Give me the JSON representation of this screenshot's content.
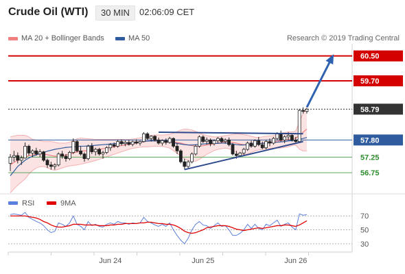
{
  "header": {
    "instrument": "Crude Oil (WTI)",
    "timeframe": "30 MIN",
    "time": "02:06:09 CET"
  },
  "legend": {
    "items": [
      {
        "label": "MA 20 + Bollinger Bands",
        "color": "#f08080"
      },
      {
        "label": "MA 50",
        "color": "#2e5c9e"
      }
    ],
    "credit": "Research © 2019 Trading Central"
  },
  "chart_data": {
    "type": "candlestick",
    "price_range": [
      56.4,
      60.8
    ],
    "levels": [
      {
        "value": 60.5,
        "label": "60.50",
        "kind": "resistance",
        "color": "#d40000",
        "style": "solid"
      },
      {
        "value": 59.7,
        "label": "59.70",
        "kind": "resistance",
        "color": "#d40000",
        "style": "solid"
      },
      {
        "value": 58.79,
        "label": "58.79",
        "kind": "last-price",
        "color": "#333333",
        "style": "dotted"
      },
      {
        "value": 57.8,
        "label": "57.80",
        "kind": "pivot",
        "color": "#2e5c9e",
        "style": "solid"
      },
      {
        "value": 57.25,
        "label": "57.25",
        "kind": "support",
        "color": "#5aa65a",
        "style": "solid"
      },
      {
        "value": 56.75,
        "label": "56.75",
        "kind": "support",
        "color": "#5aa65a",
        "style": "solid"
      }
    ],
    "x_ticks": [
      {
        "label": "Jun 24",
        "index": 27
      },
      {
        "label": "Jun 25",
        "index": 52
      },
      {
        "label": "Jun 26",
        "index": 77
      }
    ],
    "candles": [
      [
        57.05,
        57.35,
        56.8,
        57.25
      ],
      [
        57.25,
        57.45,
        57.1,
        57.3
      ],
      [
        57.3,
        57.4,
        57.05,
        57.15
      ],
      [
        57.15,
        57.3,
        57.0,
        57.22
      ],
      [
        57.22,
        57.72,
        57.2,
        57.6
      ],
      [
        57.6,
        57.65,
        57.3,
        57.38
      ],
      [
        57.38,
        57.5,
        57.25,
        57.45
      ],
      [
        57.45,
        57.55,
        57.3,
        57.35
      ],
      [
        57.35,
        57.5,
        57.25,
        57.42
      ],
      [
        57.42,
        57.45,
        57.1,
        57.15
      ],
      [
        57.15,
        57.2,
        56.9,
        57.0
      ],
      [
        57.0,
        57.1,
        56.85,
        56.95
      ],
      [
        56.95,
        57.05,
        56.85,
        57.0
      ],
      [
        57.0,
        57.4,
        56.95,
        57.35
      ],
      [
        57.35,
        57.45,
        57.2,
        57.28
      ],
      [
        57.28,
        57.35,
        57.1,
        57.2
      ],
      [
        57.2,
        57.45,
        57.15,
        57.4
      ],
      [
        57.4,
        57.85,
        57.35,
        57.75
      ],
      [
        57.75,
        57.8,
        57.4,
        57.45
      ],
      [
        57.45,
        57.6,
        57.3,
        57.35
      ],
      [
        57.35,
        57.4,
        57.1,
        57.2
      ],
      [
        57.2,
        57.65,
        57.15,
        57.6
      ],
      [
        57.6,
        57.7,
        57.35,
        57.42
      ],
      [
        57.42,
        57.55,
        57.3,
        57.5
      ],
      [
        57.5,
        57.55,
        57.3,
        57.35
      ],
      [
        57.35,
        57.45,
        57.2,
        57.4
      ],
      [
        57.4,
        57.6,
        57.35,
        57.55
      ],
      [
        57.55,
        57.7,
        57.45,
        57.65
      ],
      [
        57.65,
        57.72,
        57.55,
        57.6
      ],
      [
        57.6,
        57.8,
        57.55,
        57.75
      ],
      [
        57.75,
        57.82,
        57.62,
        57.68
      ],
      [
        57.68,
        57.78,
        57.6,
        57.72
      ],
      [
        57.72,
        57.8,
        57.62,
        57.66
      ],
      [
        57.66,
        57.78,
        57.6,
        57.74
      ],
      [
        57.74,
        57.82,
        57.66,
        57.7
      ],
      [
        57.7,
        57.78,
        57.62,
        57.75
      ],
      [
        57.75,
        58.05,
        57.72,
        58.0
      ],
      [
        58.0,
        58.05,
        57.8,
        57.85
      ],
      [
        57.85,
        57.95,
        57.75,
        57.92
      ],
      [
        57.92,
        57.95,
        57.75,
        57.8
      ],
      [
        57.8,
        57.88,
        57.65,
        57.7
      ],
      [
        57.7,
        57.82,
        57.62,
        57.78
      ],
      [
        57.78,
        57.85,
        57.65,
        57.72
      ],
      [
        57.72,
        57.9,
        57.68,
        57.85
      ],
      [
        57.85,
        57.88,
        57.55,
        57.6
      ],
      [
        57.6,
        57.7,
        57.35,
        57.45
      ],
      [
        57.45,
        57.5,
        57.05,
        57.1
      ],
      [
        57.1,
        57.2,
        56.85,
        56.95
      ],
      [
        56.95,
        57.15,
        56.9,
        57.1
      ],
      [
        57.1,
        57.4,
        57.05,
        57.35
      ],
      [
        57.35,
        57.65,
        57.3,
        57.6
      ],
      [
        57.6,
        57.95,
        57.55,
        57.9
      ],
      [
        57.9,
        57.95,
        57.7,
        57.75
      ],
      [
        57.75,
        57.88,
        57.65,
        57.8
      ],
      [
        57.8,
        57.85,
        57.6,
        57.68
      ],
      [
        57.68,
        57.82,
        57.62,
        57.78
      ],
      [
        57.78,
        57.9,
        57.7,
        57.85
      ],
      [
        57.85,
        57.9,
        57.7,
        57.75
      ],
      [
        57.75,
        57.85,
        57.68,
        57.8
      ],
      [
        57.8,
        57.88,
        57.6,
        57.65
      ],
      [
        57.65,
        57.7,
        57.3,
        57.35
      ],
      [
        57.35,
        57.45,
        57.2,
        57.3
      ],
      [
        57.3,
        57.42,
        57.25,
        57.38
      ],
      [
        57.38,
        57.55,
        57.32,
        57.5
      ],
      [
        57.5,
        57.75,
        57.45,
        57.7
      ],
      [
        57.7,
        57.78,
        57.55,
        57.6
      ],
      [
        57.6,
        57.82,
        57.55,
        57.78
      ],
      [
        57.78,
        57.9,
        57.6,
        57.65
      ],
      [
        57.65,
        57.75,
        57.5,
        57.55
      ],
      [
        57.55,
        57.8,
        57.5,
        57.75
      ],
      [
        57.75,
        57.85,
        57.6,
        57.7
      ],
      [
        57.7,
        57.9,
        57.65,
        57.85
      ],
      [
        57.85,
        58.05,
        57.8,
        58.0
      ],
      [
        58.0,
        58.1,
        57.75,
        57.8
      ],
      [
        57.8,
        57.95,
        57.7,
        57.9
      ],
      [
        57.9,
        58.05,
        57.8,
        57.95
      ],
      [
        57.95,
        58.02,
        57.75,
        57.8
      ],
      [
        57.8,
        57.9,
        57.7,
        57.75
      ],
      [
        57.75,
        58.8,
        57.72,
        58.75
      ],
      [
        58.75,
        58.85,
        58.65,
        58.72
      ],
      [
        58.72,
        58.82,
        58.65,
        58.79
      ]
    ],
    "ma50": [
      56.65,
      56.8,
      56.95,
      57.05,
      57.15,
      57.22,
      57.28,
      57.32,
      57.36,
      57.4,
      57.44,
      57.47,
      57.5,
      57.52,
      57.54,
      57.56,
      57.57,
      57.58,
      57.59,
      57.6,
      57.6,
      57.61,
      57.62,
      57.63,
      57.64,
      57.65,
      57.66,
      57.67,
      57.68,
      57.69,
      57.7,
      57.71,
      57.71,
      57.72,
      57.73,
      57.74,
      57.75,
      57.76,
      57.77,
      57.77,
      57.77,
      57.76,
      57.75,
      57.73,
      57.71,
      57.69,
      57.67,
      57.65,
      57.64,
      57.64,
      57.65,
      57.66,
      57.67,
      57.68,
      57.69,
      57.69,
      57.69,
      57.7,
      57.7,
      57.69,
      57.67,
      57.65,
      57.64,
      57.64,
      57.65,
      57.66,
      57.67,
      57.68,
      57.69,
      57.7,
      57.71,
      57.72,
      57.73,
      57.74,
      57.75,
      57.77,
      57.78,
      57.79,
      57.82,
      57.85,
      57.88
    ],
    "ma20": [
      57.0,
      57.08,
      57.15,
      57.2,
      57.25,
      57.3,
      57.32,
      57.35,
      57.36,
      57.35,
      57.33,
      57.3,
      57.28,
      57.28,
      57.3,
      57.32,
      57.35,
      57.38,
      57.42,
      57.44,
      57.45,
      57.46,
      57.47,
      57.48,
      57.5,
      57.52,
      57.54,
      57.56,
      57.58,
      57.6,
      57.62,
      57.64,
      57.66,
      57.68,
      57.7,
      57.72,
      57.74,
      57.76,
      57.77,
      57.78,
      57.78,
      57.78,
      57.77,
      57.76,
      57.74,
      57.72,
      57.7,
      57.67,
      57.64,
      57.62,
      57.6,
      57.6,
      57.62,
      57.64,
      57.66,
      57.68,
      57.7,
      57.72,
      57.74,
      57.74,
      57.72,
      57.7,
      57.67,
      57.65,
      57.65,
      57.66,
      57.67,
      57.68,
      57.7,
      57.72,
      57.73,
      57.74,
      57.76,
      57.78,
      57.8,
      57.82,
      57.84,
      57.86,
      57.95,
      58.05,
      58.15
    ],
    "bb_width": [
      0.9,
      0.85,
      0.8,
      0.75,
      0.7,
      0.6,
      0.5,
      0.45,
      0.42,
      0.4,
      0.42,
      0.45,
      0.45,
      0.42,
      0.4,
      0.38,
      0.38,
      0.4,
      0.42,
      0.42,
      0.4,
      0.38,
      0.36,
      0.34,
      0.32,
      0.3,
      0.28,
      0.26,
      0.24,
      0.22,
      0.2,
      0.18,
      0.16,
      0.15,
      0.15,
      0.15,
      0.16,
      0.18,
      0.18,
      0.18,
      0.18,
      0.18,
      0.2,
      0.22,
      0.28,
      0.35,
      0.42,
      0.48,
      0.5,
      0.5,
      0.48,
      0.42,
      0.36,
      0.3,
      0.26,
      0.22,
      0.2,
      0.2,
      0.2,
      0.22,
      0.26,
      0.3,
      0.32,
      0.32,
      0.3,
      0.26,
      0.22,
      0.2,
      0.2,
      0.2,
      0.2,
      0.2,
      0.22,
      0.24,
      0.24,
      0.24,
      0.22,
      0.22,
      0.45,
      0.6,
      0.7
    ],
    "trend_lines": [
      {
        "from": [
          40,
          58.05
        ],
        "to": [
          79,
          58.0
        ]
      },
      {
        "from": [
          47,
          56.85
        ],
        "to": [
          79,
          57.75
        ]
      }
    ],
    "projection": {
      "from": [
        80,
        58.85
      ],
      "to": [
        87,
        60.5
      ]
    },
    "rsi": {
      "ticks": [
        70,
        50,
        30
      ],
      "range": [
        20,
        85
      ],
      "values": [
        72,
        73,
        72,
        71,
        75,
        68,
        65,
        62,
        60,
        56,
        50,
        46,
        48,
        60,
        58,
        55,
        60,
        70,
        58,
        55,
        50,
        62,
        56,
        58,
        55,
        54,
        58,
        60,
        58,
        62,
        60,
        60,
        58,
        60,
        59,
        60,
        68,
        62,
        60,
        57,
        55,
        58,
        55,
        60,
        50,
        42,
        35,
        30,
        38,
        50,
        58,
        62,
        57,
        56,
        52,
        56,
        60,
        55,
        56,
        50,
        42,
        42,
        45,
        50,
        58,
        52,
        58,
        52,
        50,
        58,
        56,
        60,
        64,
        55,
        58,
        60,
        54,
        50,
        73,
        71,
        72
      ],
      "ma9": [
        70,
        70,
        70,
        70,
        70,
        69,
        68,
        67,
        65,
        62,
        60,
        57,
        55,
        54,
        54,
        55,
        56,
        58,
        58,
        58,
        57,
        57,
        57,
        57,
        56,
        56,
        56,
        57,
        57,
        58,
        58,
        59,
        59,
        59,
        59,
        60,
        60,
        61,
        61,
        60,
        59,
        59,
        58,
        58,
        57,
        55,
        52,
        48,
        46,
        45,
        46,
        48,
        50,
        53,
        54,
        55,
        56,
        56,
        56,
        55,
        53,
        51,
        50,
        49,
        50,
        51,
        52,
        53,
        52,
        53,
        54,
        55,
        56,
        56,
        57,
        57,
        56,
        55,
        57,
        60,
        63
      ],
      "legend": [
        {
          "label": "RSI",
          "color": "#5b7fdc"
        },
        {
          "label": "9MA",
          "color": "#e00000"
        }
      ]
    }
  }
}
